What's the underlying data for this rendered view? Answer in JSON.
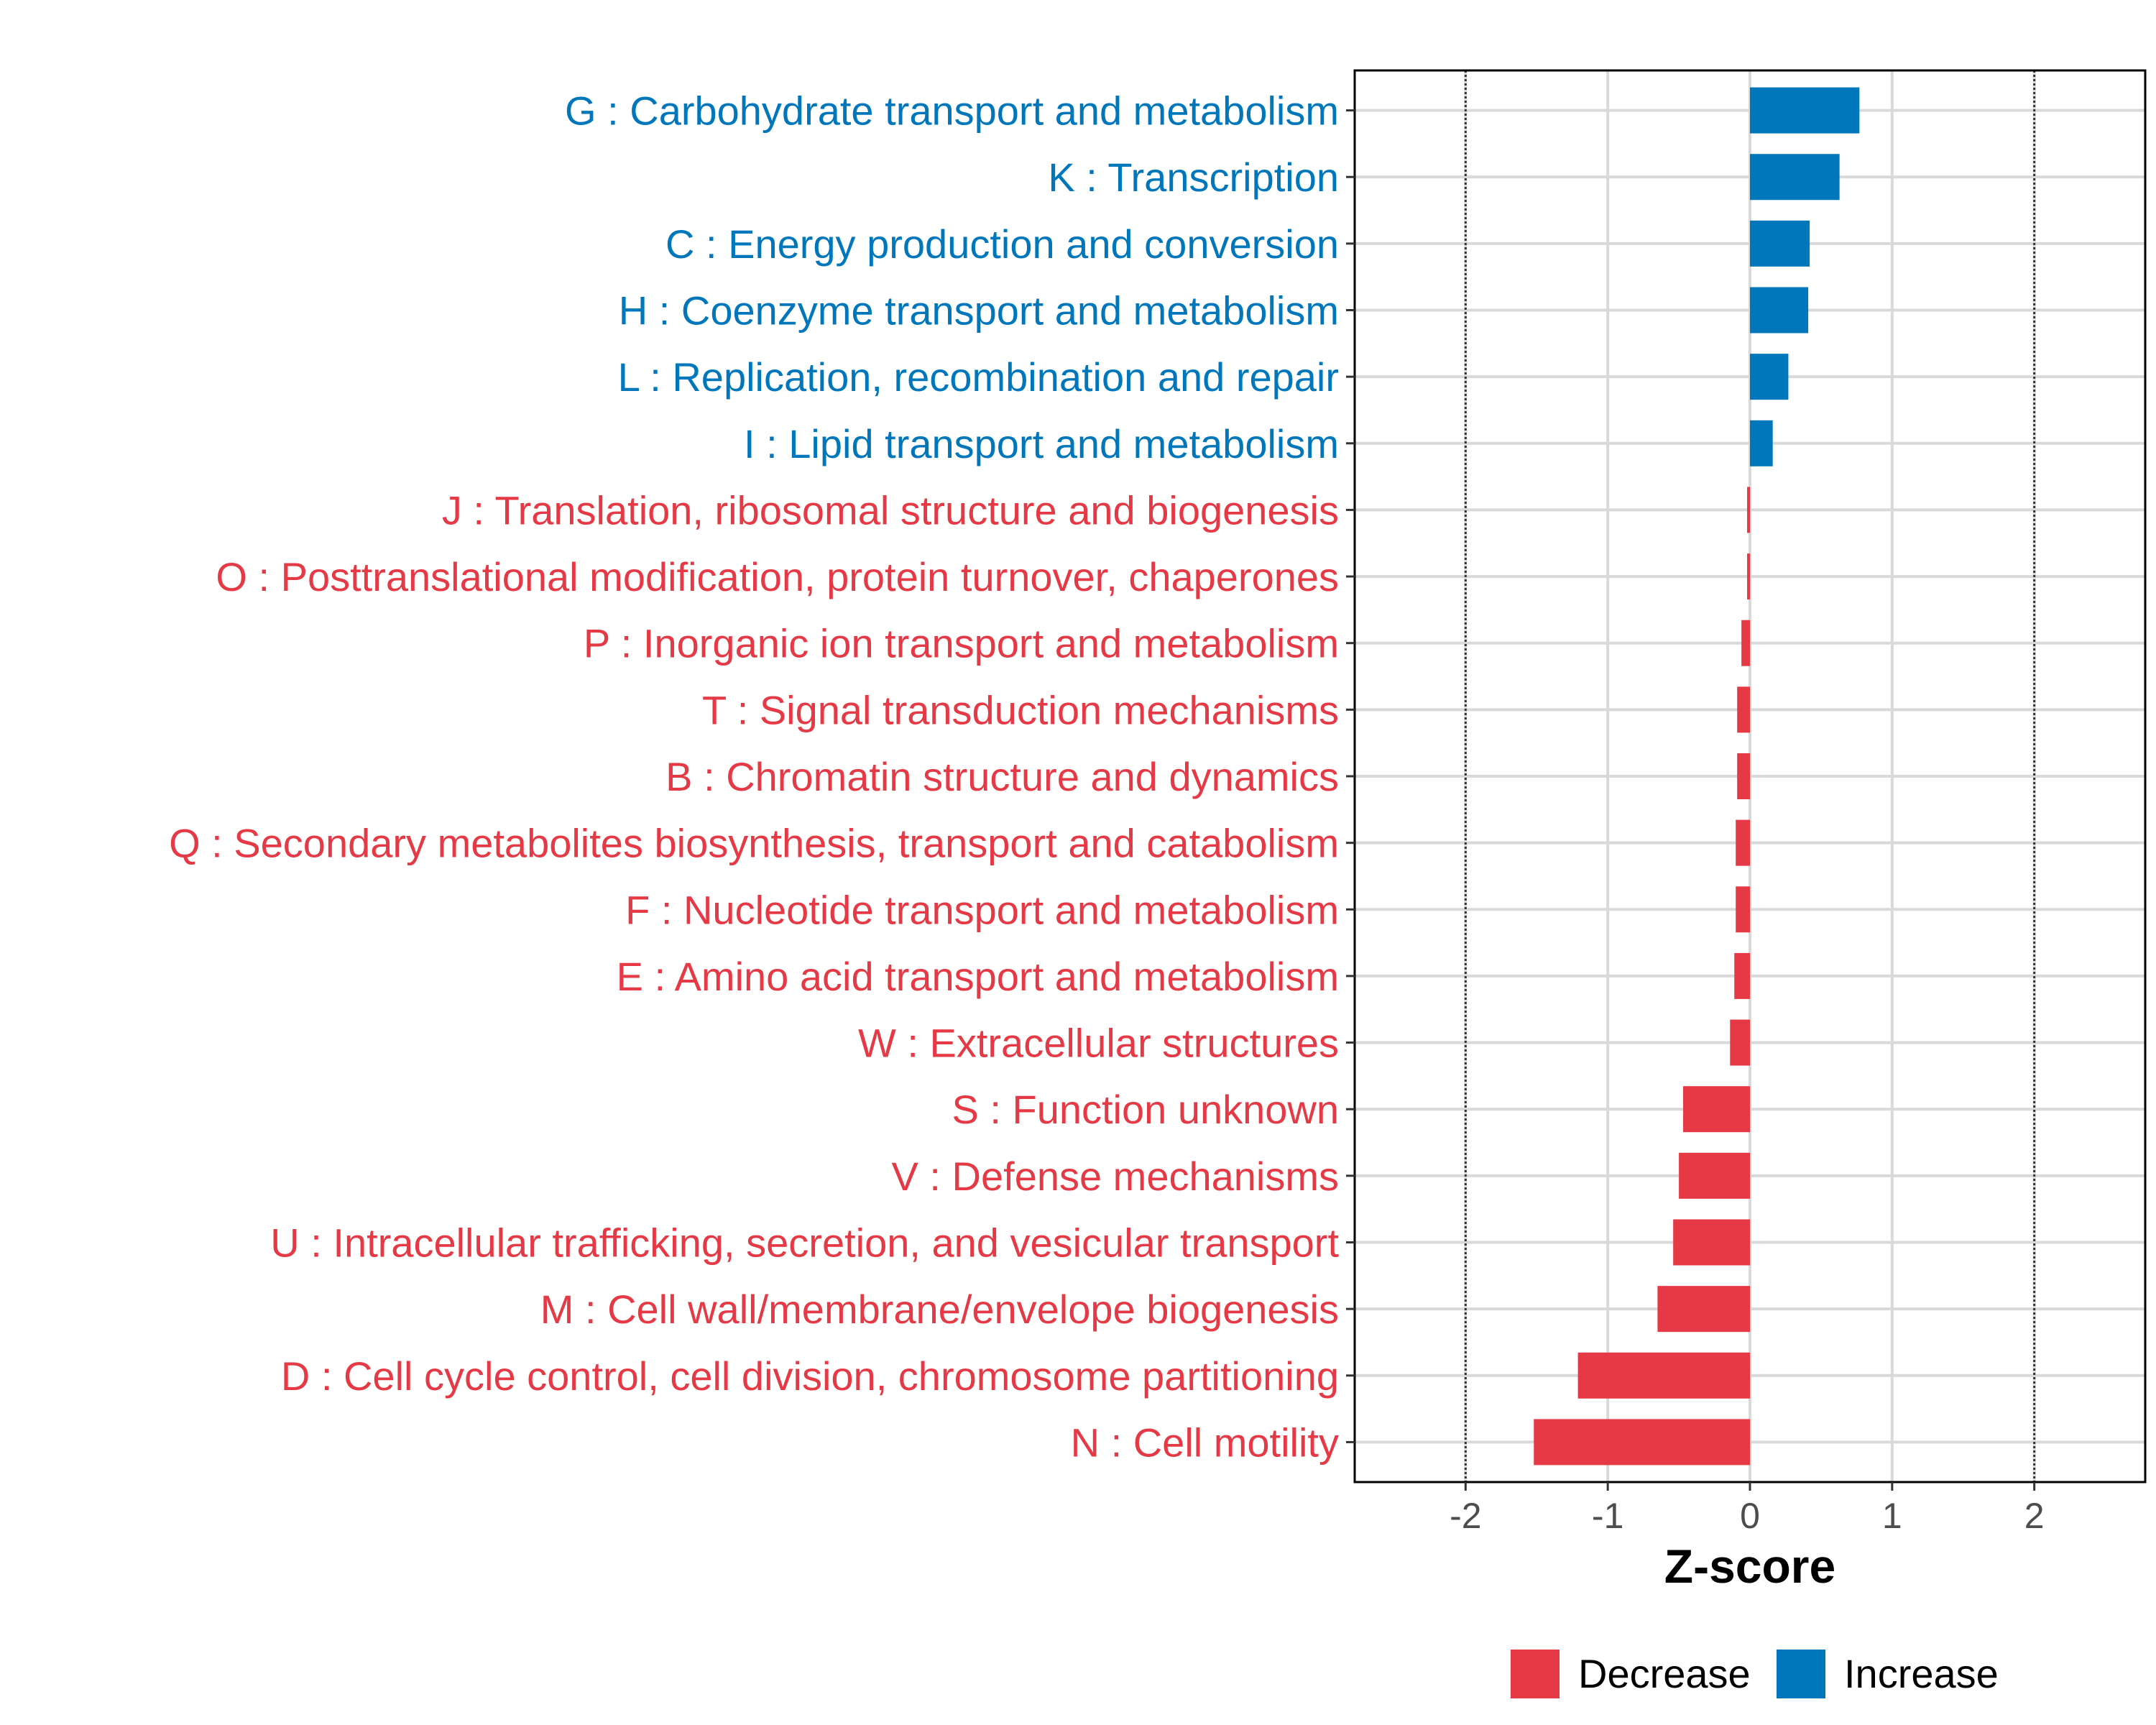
{
  "colors": {
    "decrease": "#E63946",
    "increase": "#0077BB",
    "grid": "#D9D9D9",
    "panel_border": "#000000",
    "tick_text": "#4D4D4D",
    "ref_line": "#333333"
  },
  "chart_data": {
    "type": "bar",
    "orientation": "horizontal",
    "title": "",
    "xlabel": "Z-score",
    "ylabel": "",
    "xlim": [
      -2.78,
      2.78
    ],
    "xticks": [
      -2,
      -1,
      0,
      1,
      2
    ],
    "xtick_labels": [
      "-2",
      "-1",
      "0",
      "1",
      "2"
    ],
    "reference_lines": [
      -2,
      2
    ],
    "grid": true,
    "legend": {
      "position": "bottom",
      "entries": [
        {
          "label": "Decrease",
          "color_key": "decrease"
        },
        {
          "label": "Increase",
          "color_key": "increase"
        }
      ]
    },
    "categories": [
      "G : Carbohydrate transport and metabolism",
      "K : Transcription",
      "C : Energy production and conversion",
      "H : Coenzyme transport and metabolism",
      "L : Replication, recombination and repair",
      "I : Lipid transport and metabolism",
      "J : Translation, ribosomal structure and biogenesis",
      "O : Posttranslational modification, protein turnover, chaperones",
      "P : Inorganic ion transport and metabolism",
      "T : Signal transduction mechanisms",
      "B : Chromatin structure and dynamics",
      "Q : Secondary metabolites biosynthesis, transport and catabolism",
      "F : Nucleotide transport and metabolism",
      "E : Amino acid transport and metabolism",
      "W : Extracellular structures",
      "S : Function unknown",
      "V : Defense mechanisms",
      "U : Intracellular trafficking, secretion, and vesicular transport",
      "M : Cell wall/membrane/envelope biogenesis",
      "D : Cell cycle control, cell division, chromosome partitioning",
      "N : Cell motility"
    ],
    "values": [
      0.77,
      0.63,
      0.42,
      0.41,
      0.27,
      0.16,
      -0.02,
      -0.02,
      -0.06,
      -0.09,
      -0.09,
      -0.1,
      -0.1,
      -0.11,
      -0.14,
      -0.47,
      -0.5,
      -0.54,
      -0.65,
      -1.21,
      -1.52
    ],
    "groups": [
      "Increase",
      "Increase",
      "Increase",
      "Increase",
      "Increase",
      "Increase",
      "Decrease",
      "Decrease",
      "Decrease",
      "Decrease",
      "Decrease",
      "Decrease",
      "Decrease",
      "Decrease",
      "Decrease",
      "Decrease",
      "Decrease",
      "Decrease",
      "Decrease",
      "Decrease",
      "Decrease"
    ]
  }
}
